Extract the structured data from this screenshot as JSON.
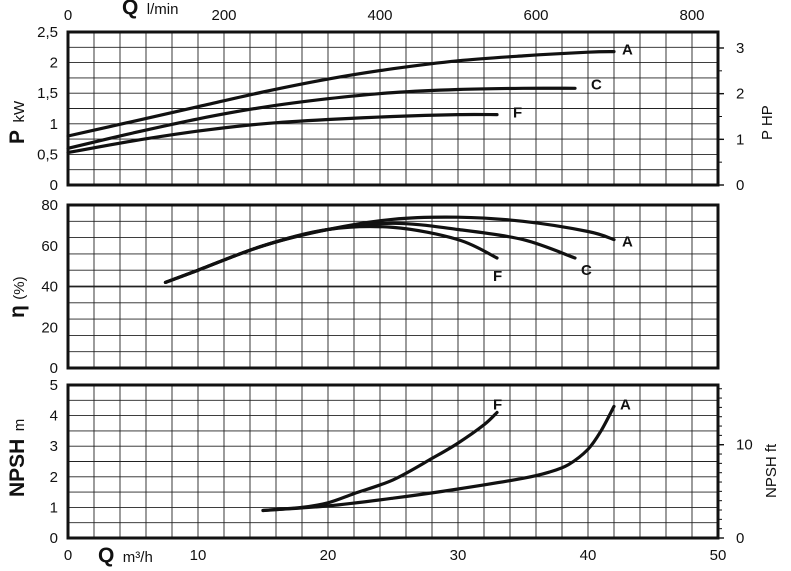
{
  "chart_data": [
    {
      "id": "power",
      "type": "line",
      "x_axis_top": {
        "label": "Q",
        "unit": "l/min",
        "range": [
          0,
          833.3
        ],
        "ticks": [
          "0",
          "200",
          "400",
          "600",
          "800"
        ]
      },
      "x_axis": {
        "label": "Q",
        "unit": "m³/h",
        "range": [
          0,
          50
        ]
      },
      "y_axis_left": {
        "label": "P",
        "unit": "kW",
        "range": [
          0,
          2.5
        ],
        "ticks": [
          "0",
          "0,5",
          "1",
          "1,5",
          "2",
          "2,5"
        ]
      },
      "y_axis_right": {
        "label": "P HP",
        "range": [
          0,
          3.35
        ],
        "ticks": [
          "0",
          "1",
          "2",
          "3"
        ]
      },
      "grid": true,
      "series": [
        {
          "name": "A",
          "x": [
            0,
            5,
            10,
            15,
            20,
            25,
            30,
            35,
            40,
            42
          ],
          "values": [
            0.8,
            1.04,
            1.28,
            1.52,
            1.73,
            1.9,
            2.03,
            2.11,
            2.17,
            2.18
          ]
        },
        {
          "name": "C",
          "x": [
            0,
            5,
            10,
            15,
            20,
            25,
            30,
            35,
            39
          ],
          "values": [
            0.6,
            0.85,
            1.08,
            1.27,
            1.41,
            1.51,
            1.56,
            1.58,
            1.58
          ]
        },
        {
          "name": "F",
          "x": [
            0,
            5,
            10,
            15,
            20,
            25,
            30,
            33
          ],
          "values": [
            0.53,
            0.72,
            0.88,
            1.0,
            1.07,
            1.12,
            1.15,
            1.15
          ]
        }
      ]
    },
    {
      "id": "efficiency",
      "type": "line",
      "x_axis": {
        "label": "Q",
        "unit": "m³/h",
        "range": [
          0,
          50
        ]
      },
      "y_axis_left": {
        "label": "η",
        "unit": "(%)",
        "range": [
          0,
          80
        ],
        "ticks": [
          "0",
          "20",
          "40",
          "60",
          "80"
        ]
      },
      "grid": true,
      "series": [
        {
          "name": "A",
          "x": [
            7.5,
            10,
            15,
            20,
            25,
            30,
            35,
            40,
            42
          ],
          "values": [
            42,
            48,
            60,
            68,
            73,
            74,
            72,
            67,
            63
          ]
        },
        {
          "name": "C",
          "x": [
            7.5,
            10,
            15,
            20,
            25,
            30,
            35,
            39
          ],
          "values": [
            42,
            48,
            60,
            68,
            71,
            68,
            63,
            54
          ]
        },
        {
          "name": "F",
          "x": [
            7.5,
            10,
            15,
            20,
            25,
            30,
            33
          ],
          "values": [
            42,
            48,
            60,
            68,
            69,
            63,
            54
          ]
        }
      ]
    },
    {
      "id": "npsh",
      "type": "line",
      "x_axis": {
        "label": "Q",
        "unit": "m³/h",
        "range": [
          0,
          50
        ],
        "ticks": [
          "0",
          "10",
          "20",
          "30",
          "40",
          "50"
        ]
      },
      "y_axis_left": {
        "label": "NPSH",
        "unit": "m",
        "range": [
          0,
          5
        ],
        "ticks": [
          "0",
          "1",
          "2",
          "3",
          "4",
          "5"
        ]
      },
      "y_axis_right": {
        "label": "NPSH ft",
        "range": [
          0,
          16.4
        ],
        "ticks": [
          "0",
          "10"
        ]
      },
      "grid": true,
      "series": [
        {
          "name": "A",
          "x": [
            15,
            20,
            25,
            30,
            35,
            37,
            38.5,
            40,
            41,
            42
          ],
          "values": [
            0.9,
            1.05,
            1.3,
            1.6,
            1.95,
            2.15,
            2.4,
            2.9,
            3.5,
            4.3
          ]
        },
        {
          "name": "F",
          "x": [
            15,
            18,
            20,
            22,
            25,
            28,
            30,
            32,
            33
          ],
          "values": [
            0.9,
            1.0,
            1.15,
            1.45,
            1.9,
            2.6,
            3.1,
            3.7,
            4.1
          ]
        }
      ]
    }
  ]
}
